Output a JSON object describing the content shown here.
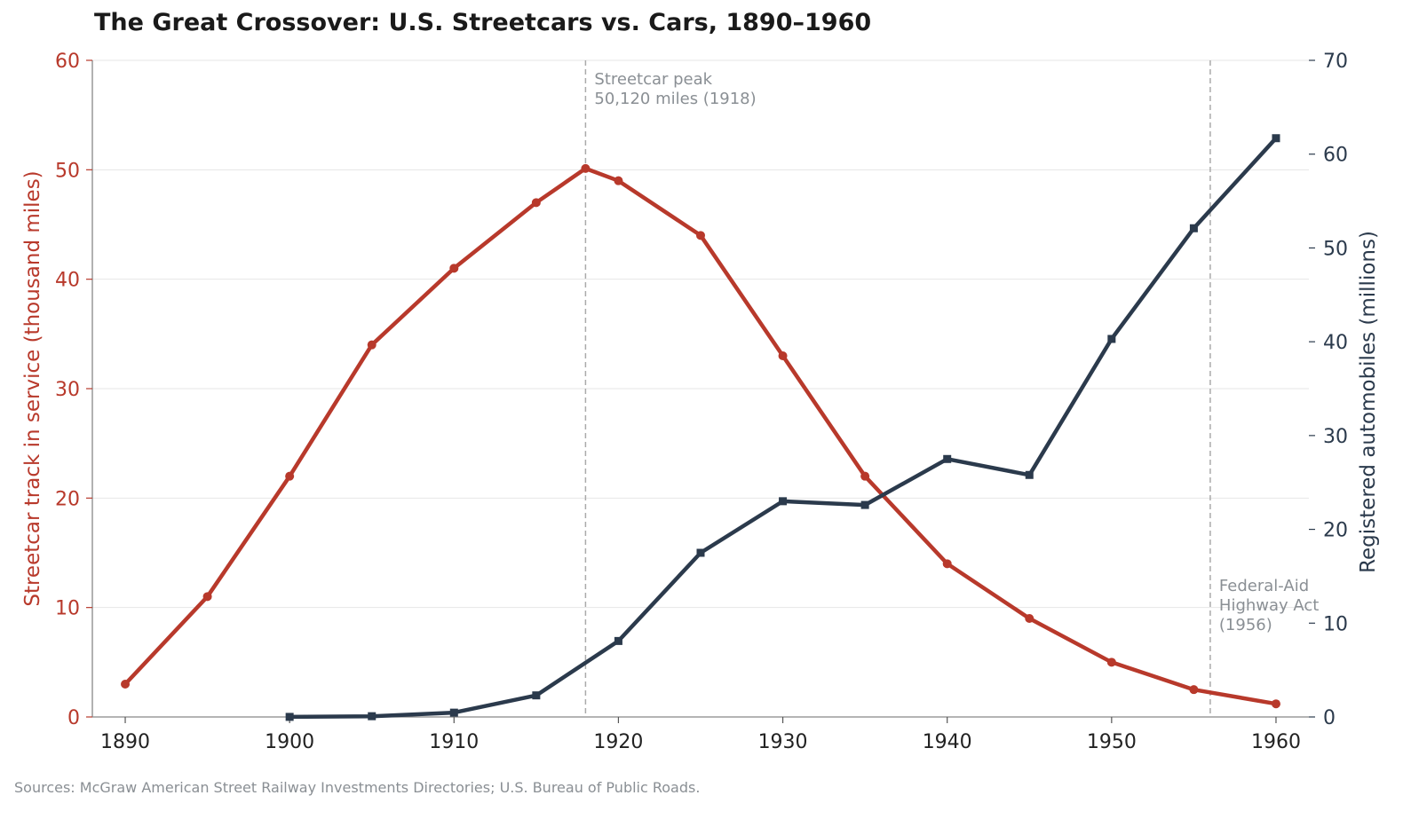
{
  "title": "The Great Crossover: U.S. Streetcars vs. Cars, 1890–1960",
  "source": "Sources: McGraw American Street Railway Investments Directories; U.S. Bureau of Public Roads.",
  "colors": {
    "streetcar": "#b8392b",
    "cars": "#2b3a4c",
    "grid": "#e6e6e6",
    "annotation": "#8a8f94",
    "refline": "#aaaaaa"
  },
  "chart_data": {
    "type": "line",
    "title": "The Great Crossover: U.S. Streetcars vs. Cars, 1890–1960",
    "xlabel": "",
    "ylabel_left": "Streetcar track in service (thousand miles)",
    "ylabel_right": "Registered automobiles (millions)",
    "xlim": [
      1888,
      1962
    ],
    "ylim_left": [
      0,
      60
    ],
    "ylim_right": [
      0,
      70
    ],
    "xticks": [
      1890,
      1900,
      1910,
      1920,
      1930,
      1940,
      1950,
      1960
    ],
    "yticks_left": [
      0,
      10,
      20,
      30,
      40,
      50,
      60
    ],
    "yticks_right": [
      0,
      10,
      20,
      30,
      40,
      50,
      60,
      70
    ],
    "grid": "horizontal",
    "series": [
      {
        "name": "Streetcar track in service (thousand miles)",
        "axis": "left",
        "marker": "circle",
        "x": [
          1890,
          1895,
          1900,
          1905,
          1910,
          1915,
          1918,
          1920,
          1925,
          1930,
          1935,
          1940,
          1945,
          1950,
          1955,
          1960
        ],
        "y": [
          3,
          11,
          22,
          34,
          41,
          47,
          50.12,
          49,
          44,
          33,
          22,
          14,
          9,
          5,
          2.5,
          1.2
        ]
      },
      {
        "name": "Registered automobiles (millions)",
        "axis": "right",
        "marker": "square",
        "x": [
          1900,
          1905,
          1910,
          1915,
          1920,
          1925,
          1930,
          1935,
          1940,
          1945,
          1950,
          1955,
          1960
        ],
        "y": [
          0.008,
          0.08,
          0.46,
          2.3,
          8.1,
          17.5,
          23.0,
          22.6,
          27.5,
          25.8,
          40.3,
          52.1,
          61.7
        ]
      }
    ],
    "annotations": [
      {
        "x": 1918,
        "lines": [
          "Streetcar peak",
          "50,120 miles (1918)"
        ]
      },
      {
        "x": 1956,
        "lines": [
          "Federal-Aid",
          "Highway Act",
          "(1956)"
        ]
      }
    ]
  }
}
